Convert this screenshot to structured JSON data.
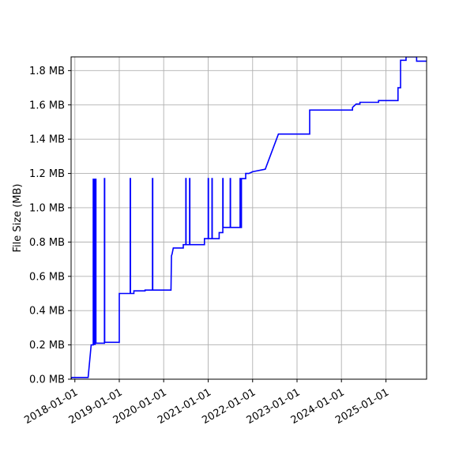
{
  "chart_data": {
    "type": "line",
    "title": "",
    "xlabel": "",
    "ylabel": "File Size (MB)",
    "grid": true,
    "legend": "none",
    "xlim": [
      "2017-12-01",
      "2025-12-01"
    ],
    "ylim": [
      0,
      1.88
    ],
    "x_ticks": [
      "2018-01-01",
      "2019-01-01",
      "2020-01-01",
      "2021-01-01",
      "2022-01-01",
      "2023-01-01",
      "2024-01-01",
      "2025-01-01"
    ],
    "y_ticks": [
      0.0,
      0.2,
      0.4,
      0.6,
      0.8,
      1.0,
      1.2,
      1.4,
      1.6,
      1.8
    ],
    "y_tick_labels": [
      "0.0 MB",
      "0.2 MB",
      "0.4 MB",
      "0.6 MB",
      "0.8 MB",
      "1.0 MB",
      "1.2 MB",
      "1.4 MB",
      "1.6 MB",
      "1.8 MB"
    ],
    "series": [
      {
        "color": "#0000ff",
        "x": [
          "2017-12-01",
          "2017-12-05",
          "2018-04-20",
          "2018-05-15",
          "2018-06-01",
          "2018-06-01",
          "2018-06-03",
          "2018-06-05",
          "2018-06-05",
          "2018-06-08",
          "2018-06-08",
          "2018-06-11",
          "2018-06-14",
          "2018-06-14",
          "2018-06-17",
          "2018-06-20",
          "2018-06-20",
          "2018-06-23",
          "2018-06-23",
          "2018-06-26",
          "2018-07-01",
          "2018-09-01",
          "2018-09-01",
          "2018-09-03",
          "2018-09-03",
          "2019-01-01",
          "2019-01-01",
          "2019-04-01",
          "2019-04-01",
          "2019-04-03",
          "2019-04-03",
          "2019-05-01",
          "2019-05-01",
          "2019-08-01",
          "2019-08-01",
          "2019-10-01",
          "2019-10-01",
          "2019-10-03",
          "2019-10-03",
          "2020-01-01",
          "2020-03-01",
          "2020-03-05",
          "2020-03-10",
          "2020-03-20",
          "2020-04-01",
          "2020-06-10",
          "2020-06-10",
          "2020-07-01",
          "2020-07-01",
          "2020-07-03",
          "2020-07-03",
          "2020-08-01",
          "2020-08-01",
          "2020-08-03",
          "2020-08-03",
          "2020-12-01",
          "2020-12-01",
          "2021-01-01",
          "2021-01-01",
          "2021-01-03",
          "2021-01-03",
          "2021-02-01",
          "2021-02-01",
          "2021-02-03",
          "2021-02-03",
          "2021-04-01",
          "2021-04-01",
          "2021-05-01",
          "2021-05-01",
          "2021-05-03",
          "2021-05-03",
          "2021-07-01",
          "2021-07-01",
          "2021-07-03",
          "2021-07-03",
          "2021-09-20",
          "2021-09-20",
          "2021-09-22",
          "2021-09-22",
          "2021-10-01",
          "2021-10-01",
          "2021-10-03",
          "2021-10-03",
          "2021-11-05",
          "2021-11-05",
          "2021-12-01",
          "2022-01-01",
          "2022-04-15",
          "2022-08-01",
          "2023-04-15",
          "2023-04-15",
          "2024-04-01",
          "2024-04-01",
          "2024-05-01",
          "2024-06-01",
          "2024-06-01",
          "2024-11-01",
          "2024-11-01",
          "2025-04-10",
          "2025-04-10",
          "2025-05-01",
          "2025-05-01",
          "2025-06-15",
          "2025-06-15",
          "2025-09-10",
          "2025-09-10",
          "2025-12-01"
        ],
        "y": [
          0.0,
          0.01,
          0.01,
          0.2,
          0.2,
          1.17,
          0.2,
          1.17,
          0.2,
          1.17,
          0.2,
          1.17,
          0.2,
          1.17,
          0.2,
          1.17,
          0.21,
          1.17,
          0.21,
          0.21,
          0.21,
          0.21,
          1.17,
          1.17,
          0.215,
          0.215,
          0.5,
          0.5,
          1.17,
          1.17,
          0.5,
          0.5,
          0.515,
          0.515,
          0.52,
          0.52,
          1.17,
          1.17,
          0.52,
          0.52,
          0.52,
          0.72,
          0.73,
          0.765,
          0.765,
          0.765,
          0.785,
          0.785,
          1.17,
          1.17,
          0.785,
          0.785,
          1.17,
          1.17,
          0.785,
          0.785,
          0.82,
          0.82,
          1.17,
          1.17,
          0.82,
          0.82,
          1.17,
          1.17,
          0.82,
          0.82,
          0.855,
          0.855,
          1.17,
          1.17,
          0.885,
          0.885,
          1.17,
          1.17,
          0.885,
          0.885,
          1.17,
          1.17,
          0.885,
          0.885,
          1.17,
          1.17,
          1.17,
          1.17,
          1.2,
          1.2,
          1.21,
          1.225,
          1.43,
          1.43,
          1.57,
          1.57,
          1.585,
          1.605,
          1.605,
          1.615,
          1.615,
          1.625,
          1.625,
          1.7,
          1.7,
          1.86,
          1.86,
          1.88,
          1.88,
          1.855,
          1.855
        ]
      }
    ]
  }
}
